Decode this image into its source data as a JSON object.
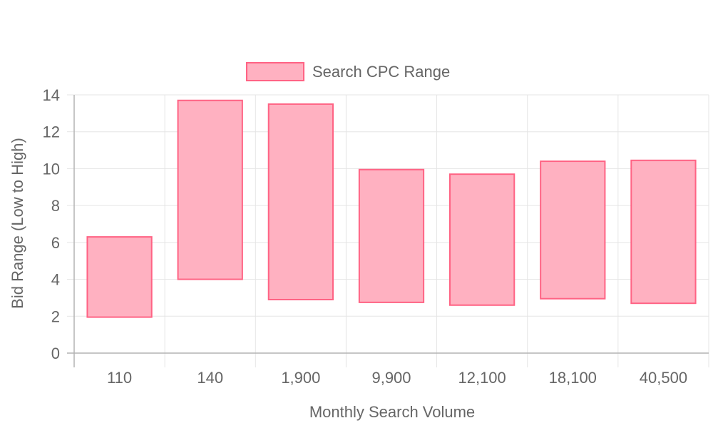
{
  "chart_data": {
    "type": "bar",
    "subtype": "floating-range",
    "categories": [
      "110",
      "140",
      "1,900",
      "9,900",
      "12,100",
      "18,100",
      "40,500"
    ],
    "series": [
      {
        "name": "Search CPC Range",
        "ranges": [
          [
            1.95,
            6.3
          ],
          [
            4.0,
            13.7
          ],
          [
            2.9,
            13.5
          ],
          [
            2.75,
            9.95
          ],
          [
            2.6,
            9.7
          ],
          [
            2.95,
            10.4
          ],
          [
            2.7,
            10.45
          ]
        ]
      }
    ],
    "xlabel": "Monthly Search Volume",
    "ylabel": "Bid Range (Low to High)",
    "ylim": [
      0,
      14
    ],
    "yticks": [
      0,
      2,
      4,
      6,
      8,
      10,
      12,
      14
    ],
    "grid": true,
    "legend_position": "top",
    "colors": {
      "bar_fill": "#ffb1c1",
      "bar_border": "#ff6384",
      "grid": "#e5e5e5",
      "axis": "#b3b3b3",
      "text": "#666666"
    }
  }
}
